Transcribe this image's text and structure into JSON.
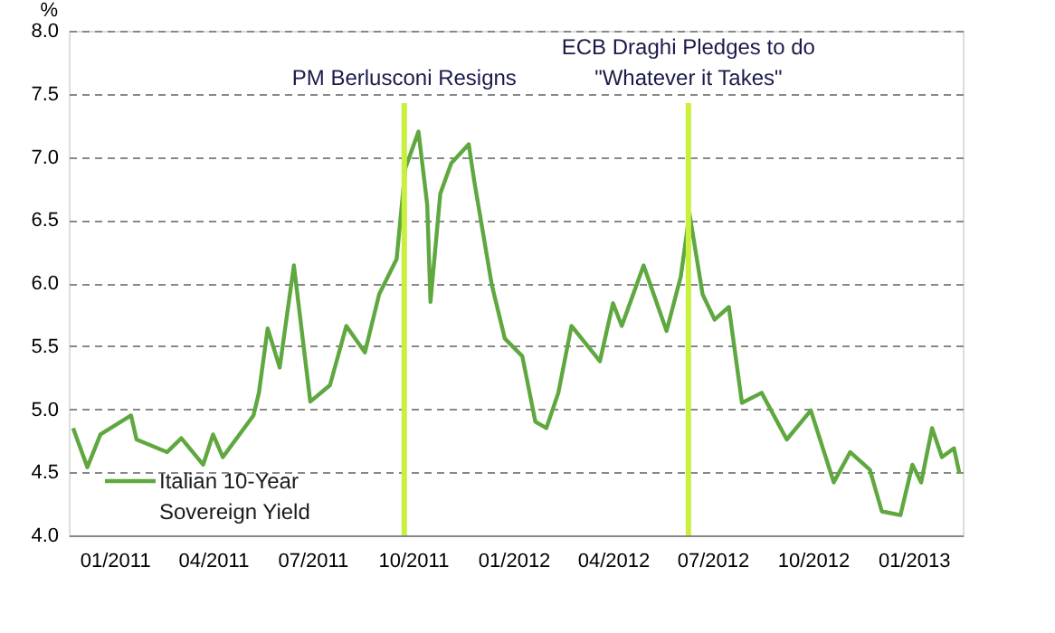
{
  "chart_data": {
    "type": "line",
    "ylabel": "%",
    "x": [
      "2010-11-24",
      "2010-12-07",
      "2010-12-19",
      "2011-01-16",
      "2011-01-21",
      "2011-02-18",
      "2011-03-03",
      "2011-03-23",
      "2011-04-01",
      "2011-04-10",
      "2011-05-08",
      "2011-05-13",
      "2011-05-21",
      "2011-06-01",
      "2011-06-14",
      "2011-06-29",
      "2011-07-17",
      "2011-08-01",
      "2011-08-18",
      "2011-08-31",
      "2011-09-16",
      "2011-09-24",
      "2011-10-06",
      "2011-10-14",
      "2011-10-17",
      "2011-10-26",
      "2011-11-05",
      "2011-11-21",
      "2011-11-26",
      "2011-12-12",
      "2011-12-24",
      "2012-01-09",
      "2012-01-21",
      "2012-01-31",
      "2012-02-11",
      "2012-02-23",
      "2012-03-20",
      "2012-04-01",
      "2012-04-09",
      "2012-04-29",
      "2012-05-20",
      "2012-06-02",
      "2012-06-10",
      "2012-06-22",
      "2012-07-03",
      "2012-07-16",
      "2012-07-28",
      "2012-08-15",
      "2012-09-07",
      "2012-09-29",
      "2012-10-20",
      "2012-11-04",
      "2012-11-22",
      "2012-12-03",
      "2012-12-20",
      "2012-12-31",
      "2013-01-08",
      "2013-01-18",
      "2013-01-27",
      "2013-02-07",
      "2013-02-12"
    ],
    "series": [
      {
        "name": "Italian 10-Year Sovereign Yield",
        "color": "#5fa83f",
        "values": [
          4.85,
          4.54,
          4.8,
          4.95,
          4.76,
          4.66,
          4.77,
          4.56,
          4.8,
          4.62,
          4.95,
          5.13,
          5.64,
          5.33,
          6.14,
          5.06,
          5.19,
          5.66,
          5.45,
          5.91,
          6.19,
          6.91,
          7.2,
          6.62,
          5.85,
          6.71,
          6.95,
          7.1,
          6.81,
          5.99,
          5.56,
          5.42,
          4.9,
          4.85,
          5.13,
          5.66,
          5.38,
          5.84,
          5.66,
          6.14,
          5.62,
          6.05,
          6.55,
          5.91,
          5.71,
          5.81,
          5.05,
          5.13,
          4.76,
          4.99,
          4.42,
          4.66,
          4.52,
          4.19,
          4.16,
          4.56,
          4.42,
          4.85,
          4.62,
          4.69,
          4.49
        ]
      }
    ],
    "xlim": [
      "2010-11-20",
      "2013-02-15"
    ],
    "xticks": [
      {
        "value": "2011-01-01",
        "label": "01/2011"
      },
      {
        "value": "2011-04-01",
        "label": "04/2011"
      },
      {
        "value": "2011-07-01",
        "label": "07/2011"
      },
      {
        "value": "2011-10-01",
        "label": "10/2011"
      },
      {
        "value": "2012-01-01",
        "label": "01/2012"
      },
      {
        "value": "2012-04-01",
        "label": "04/2012"
      },
      {
        "value": "2012-07-01",
        "label": "07/2012"
      },
      {
        "value": "2012-10-01",
        "label": "10/2012"
      },
      {
        "value": "2013-01-01",
        "label": "01/2013"
      }
    ],
    "ylim": [
      4,
      8
    ],
    "yticks": [
      {
        "value": 4,
        "label": "4.0"
      },
      {
        "value": 4.5,
        "label": "4.5"
      },
      {
        "value": 5,
        "label": "5.0"
      },
      {
        "value": 5.5,
        "label": "5.5"
      },
      {
        "value": 6,
        "label": "6.0"
      },
      {
        "value": 6.5,
        "label": "6.5"
      },
      {
        "value": 7,
        "label": "7.0"
      },
      {
        "value": 7.5,
        "label": "7.5"
      },
      {
        "value": 8,
        "label": "8.0"
      }
    ],
    "grid": "y",
    "legend": "bottom left",
    "ref_lines": [
      {
        "axis": "x",
        "value": "2011-09-23",
        "label": "PM Berlusconi Resigns",
        "color": "#c8f03c"
      },
      {
        "axis": "x",
        "value": "2012-06-09",
        "label": "ECB Draghi Pledges to do\n\"Whatever it Takes\"",
        "color": "#c8f03c"
      }
    ]
  }
}
